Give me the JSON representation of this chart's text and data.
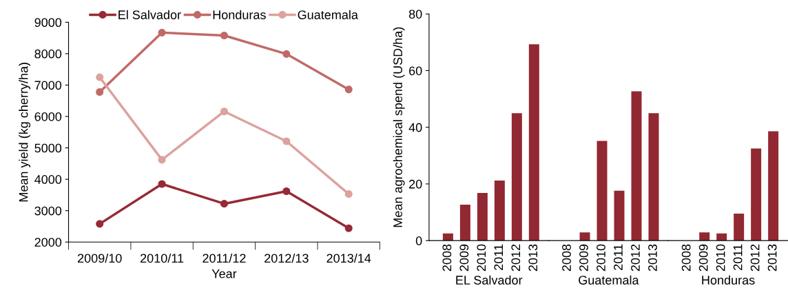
{
  "chart_data": [
    {
      "type": "line",
      "xlabel": "Year",
      "ylabel": "Mean yield (kg cherry/ha)",
      "categories": [
        "2009/10",
        "2010/11",
        "2011/12",
        "2012/13",
        "2013/14"
      ],
      "series": [
        {
          "name": "El Salvador",
          "color": "#962a35",
          "values": [
            2580,
            3850,
            3220,
            3620,
            2440
          ]
        },
        {
          "name": "Honduras",
          "color": "#c06a68",
          "values": [
            6780,
            8670,
            8580,
            7990,
            6860
          ]
        },
        {
          "name": "Guatemala",
          "color": "#dca29e",
          "values": [
            7250,
            4620,
            6160,
            5210,
            3530
          ]
        }
      ],
      "ylim": [
        2000,
        9000
      ],
      "yticks": [
        2000,
        3000,
        4000,
        5000,
        6000,
        7000,
        8000,
        9000
      ],
      "marker": "circle",
      "line_style": "solid",
      "legend": "top",
      "grid": false
    },
    {
      "type": "bar",
      "ylabel": "Mean agrochemical spend (USD/ha)",
      "xlabel": "EL Salvador",
      "categories": [
        "2008",
        "2009",
        "2010",
        "2011",
        "2012",
        "2013"
      ],
      "values": [
        2.5,
        12.7,
        16.8,
        21.2,
        45,
        69.3
      ],
      "color": "#922832",
      "ylim": [
        0,
        80
      ],
      "yticks": [
        0,
        20,
        40,
        60,
        80
      ],
      "grid": false
    },
    {
      "type": "bar",
      "xlabel": "Guatemala",
      "categories": [
        "2008",
        "2009",
        "2010",
        "2011",
        "2012",
        "2013"
      ],
      "values": [
        null,
        2.9,
        35.2,
        17.6,
        52.7,
        45
      ],
      "color": "#922832",
      "ylim": [
        0,
        80
      ],
      "tick_labels": "x",
      "grid": false
    },
    {
      "type": "bar",
      "xlabel": "Honduras",
      "categories": [
        "2008",
        "2009",
        "2010",
        "2011",
        "2012",
        "2013"
      ],
      "values": [
        null,
        2.9,
        2.5,
        9.5,
        32.5,
        38.6
      ],
      "color": "#922832",
      "ylim": [
        0,
        80
      ],
      "tick_labels": "x",
      "grid": false
    }
  ]
}
